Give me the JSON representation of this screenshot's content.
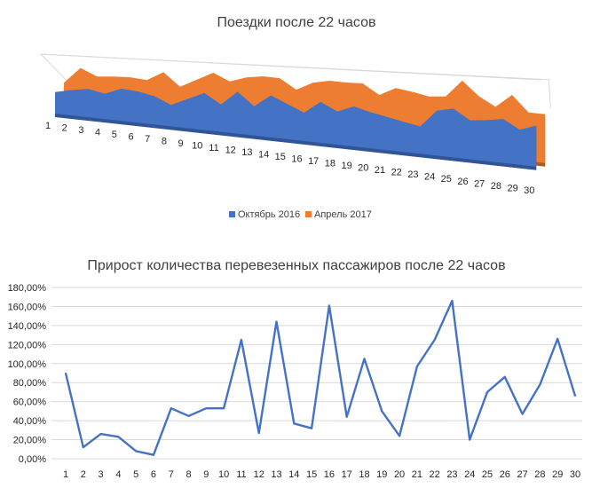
{
  "chart_data": [
    {
      "type": "area",
      "title": "Поездки после 22 часов",
      "style": "3d",
      "categories": [
        "1",
        "2",
        "3",
        "4",
        "5",
        "6",
        "7",
        "8",
        "9",
        "10",
        "11",
        "12",
        "13",
        "14",
        "15",
        "16",
        "17",
        "18",
        "19",
        "20",
        "21",
        "22",
        "23",
        "24",
        "25",
        "26",
        "27",
        "28",
        "29",
        "30"
      ],
      "series": [
        {
          "name": "Октябрь 2016",
          "color": "#4472c4",
          "values": [
            22,
            26,
            29,
            26,
            33,
            32,
            29,
            22,
            30,
            38,
            28,
            43,
            30,
            43,
            36,
            29,
            42,
            34,
            41,
            37,
            34,
            31,
            28,
            46,
            50,
            40,
            42,
            45,
            36,
            42
          ]
        },
        {
          "name": "Апрель 2017",
          "color": "#ed7d31",
          "values": [
            28,
            45,
            38,
            40,
            41,
            40,
            50,
            37,
            46,
            55,
            48,
            54,
            57,
            57,
            47,
            56,
            60,
            60,
            61,
            51,
            60,
            58,
            55,
            57,
            75,
            61,
            52,
            66,
            50,
            50
          ]
        }
      ],
      "legend_position": "bottom",
      "grid": false
    },
    {
      "type": "line",
      "title": "Прирост количества перевезенных пассажиров после 22 часов",
      "categories": [
        "1",
        "2",
        "3",
        "4",
        "5",
        "6",
        "7",
        "8",
        "9",
        "10",
        "11",
        "12",
        "13",
        "14",
        "15",
        "16",
        "17",
        "18",
        "19",
        "20",
        "21",
        "22",
        "23",
        "24",
        "25",
        "26",
        "27",
        "28",
        "29",
        "30"
      ],
      "series": [
        {
          "color": "#4472c4",
          "values": [
            90,
            12,
            26,
            23,
            8,
            4,
            53,
            45,
            53,
            53,
            125,
            27,
            144,
            37,
            32,
            161,
            44,
            105,
            50,
            24,
            97,
            125,
            166,
            20,
            70,
            86,
            47,
            78,
            126,
            66
          ]
        }
      ],
      "ylim": [
        0,
        180
      ],
      "y_ticks": [
        "0,00%",
        "20,00%",
        "40,00%",
        "60,00%",
        "80,00%",
        "100,00%",
        "120,00%",
        "140,00%",
        "160,00%",
        "180,00%"
      ],
      "y_tick_values": [
        0,
        20,
        40,
        60,
        80,
        100,
        120,
        140,
        160,
        180
      ],
      "grid": true
    }
  ]
}
